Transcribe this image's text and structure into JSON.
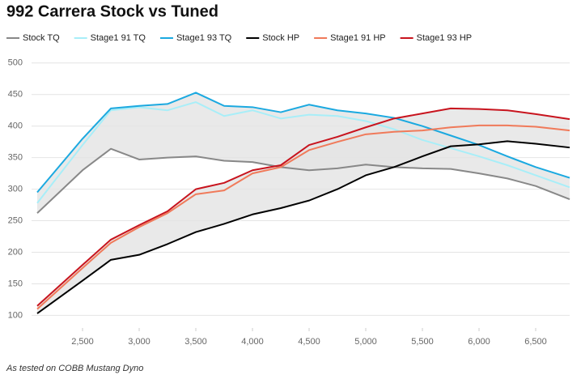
{
  "chart_data": {
    "type": "line",
    "title": "992 Carrera Stock vs Tuned",
    "footnote": "As tested on COBB Mustang Dyno",
    "x": [
      2100,
      2500,
      2750,
      3000,
      3250,
      3500,
      3750,
      4000,
      4250,
      4500,
      4750,
      5000,
      5250,
      5500,
      5750,
      6000,
      6250,
      6500,
      6800
    ],
    "series": [
      {
        "name": "Stock TQ",
        "color": "#888888",
        "values": [
          262,
          330,
          364,
          347,
          350,
          352,
          345,
          343,
          335,
          330,
          333,
          339,
          335,
          333,
          332,
          325,
          317,
          305,
          284
        ]
      },
      {
        "name": "Stage1 91 TQ",
        "color": "#a8eef8",
        "values": [
          278,
          370,
          425,
          430,
          425,
          438,
          416,
          425,
          412,
          418,
          416,
          408,
          395,
          378,
          365,
          352,
          338,
          322,
          303
        ]
      },
      {
        "name": "Stage1 93 TQ",
        "color": "#1ba9e0",
        "values": [
          295,
          380,
          428,
          432,
          435,
          453,
          432,
          430,
          422,
          434,
          425,
          420,
          413,
          400,
          385,
          370,
          352,
          335,
          318
        ]
      },
      {
        "name": "Stock HP",
        "color": "#000000",
        "values": [
          103,
          155,
          188,
          196,
          213,
          232,
          245,
          260,
          270,
          282,
          300,
          322,
          335,
          352,
          368,
          371,
          376,
          372,
          366
        ]
      },
      {
        "name": "Stage1 91 HP",
        "color": "#f07a5a",
        "values": [
          110,
          175,
          215,
          240,
          262,
          292,
          298,
          325,
          335,
          362,
          375,
          387,
          391,
          393,
          398,
          401,
          401,
          399,
          393
        ]
      },
      {
        "name": "Stage1 93 HP",
        "color": "#c8141e",
        "values": [
          115,
          180,
          220,
          243,
          265,
          300,
          310,
          330,
          338,
          370,
          383,
          398,
          412,
          420,
          428,
          427,
          425,
          419,
          411
        ]
      }
    ],
    "xlim": [
      2050,
      6800
    ],
    "ylim": [
      80,
      510
    ],
    "xticks": [
      {
        "value": 2500,
        "label": "2,500"
      },
      {
        "value": 3000,
        "label": "3,000"
      },
      {
        "value": 3500,
        "label": "3,500"
      },
      {
        "value": 4000,
        "label": "4,000"
      },
      {
        "value": 4500,
        "label": "4,500"
      },
      {
        "value": 5000,
        "label": "5,000"
      },
      {
        "value": 5500,
        "label": "5,500"
      },
      {
        "value": 6000,
        "label": "6,000"
      },
      {
        "value": 6500,
        "label": "6,500"
      }
    ],
    "yticks": [
      100,
      150,
      200,
      250,
      300,
      350,
      400,
      450,
      500
    ],
    "grid": true,
    "band_color": "#e3e3e3"
  }
}
